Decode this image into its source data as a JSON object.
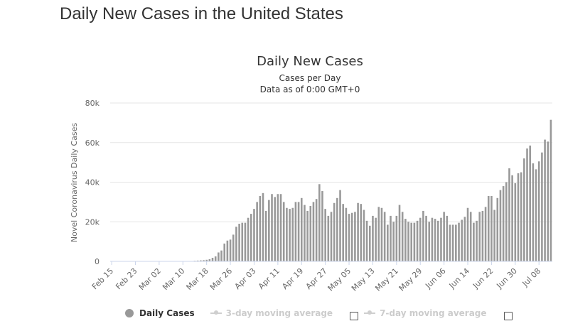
{
  "page": {
    "title": "Daily New Cases in the United States"
  },
  "legend": {
    "items": [
      {
        "label": "Daily Cases",
        "active": true
      },
      {
        "label": "3-day moving average",
        "active": false
      },
      {
        "label": "7-day moving average",
        "active": false
      }
    ]
  },
  "colors": {
    "bars": "#999999",
    "grid": "#e6e6e6",
    "legend_inactive": "#cccccc"
  },
  "chart_data": {
    "type": "bar",
    "title": "Daily New Cases",
    "subtitle_lines": [
      "Cases per Day",
      "Data as of 0:00 GMT+0"
    ],
    "ylabel": "Novel Coronavirus Daily Cases",
    "xlabel": "",
    "ylim": [
      0,
      80000
    ],
    "y_ticks": [
      0,
      20000,
      40000,
      60000,
      80000
    ],
    "y_tick_labels": [
      "0",
      "20k",
      "40k",
      "60k",
      "80k"
    ],
    "x_tick_labels": [
      "Feb 15",
      "Feb 23",
      "Mar 02",
      "Mar 10",
      "Mar 18",
      "Mar 26",
      "Apr 03",
      "Apr 11",
      "Apr 19",
      "Apr 27",
      "May 05",
      "May 13",
      "May 21",
      "May 29",
      "Jun 06",
      "Jun 14",
      "Jun 22",
      "Jun 30",
      "Jul 08"
    ],
    "grid": true,
    "legend_position": "bottom",
    "first_date": "Feb 15",
    "last_date": "Jul 10",
    "series": [
      {
        "name": "Daily Cases",
        "values": [
          0,
          0,
          0,
          0,
          0,
          0,
          0,
          0,
          0,
          0,
          0,
          0,
          0,
          0,
          0,
          0,
          0,
          0,
          0,
          0,
          0,
          0,
          0,
          0,
          0,
          0,
          0,
          0,
          300,
          400,
          500,
          600,
          800,
          1100,
          1800,
          2500,
          4500,
          5500,
          9000,
          10500,
          11000,
          13500,
          17500,
          19000,
          19500,
          19500,
          22000,
          24000,
          26500,
          30000,
          33000,
          34500,
          25500,
          31000,
          34000,
          32500,
          34000,
          34000,
          30000,
          27000,
          26500,
          27000,
          30000,
          30000,
          32000,
          28500,
          25500,
          28000,
          30000,
          31500,
          39000,
          35500,
          26500,
          23000,
          25000,
          29500,
          32000,
          36000,
          29000,
          27000,
          24000,
          24500,
          25000,
          29500,
          29000,
          26000,
          20500,
          18000,
          23000,
          22000,
          27500,
          27000,
          25000,
          18500,
          23000,
          20000,
          23000,
          28500,
          25000,
          21500,
          20000,
          19500,
          19500,
          20500,
          22000,
          25500,
          23000,
          20000,
          22000,
          21500,
          20500,
          22000,
          25000,
          23000,
          18500,
          18500,
          18500,
          19500,
          21000,
          22500,
          27000,
          25000,
          19500,
          20500,
          25000,
          25500,
          27500,
          33000,
          33000,
          26000,
          32000,
          36000,
          38000,
          40000,
          47000,
          43500,
          39500,
          44500,
          45000,
          52000,
          57000,
          58500,
          49500,
          46500,
          50500,
          55000,
          61500,
          60500,
          71500
        ]
      }
    ]
  }
}
